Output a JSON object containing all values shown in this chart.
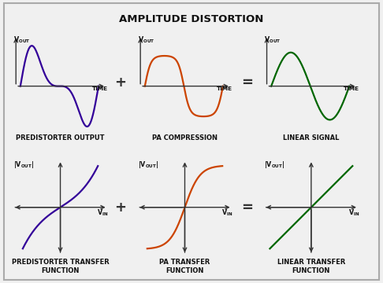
{
  "title": "AMPLITUDE DISTORTION",
  "bg_color": "#f0f0f0",
  "colors": [
    "#330099",
    "#cc4400",
    "#006600"
  ],
  "top_labels": [
    "PREDISTORTER OUTPUT",
    "PA COMPRESSION",
    "LINEAR SIGNAL"
  ],
  "bot_labels": [
    "PREDISTORTER TRANSFER\nFUNCTION",
    "PA TRANSFER\nFUNCTION",
    "LINEAR TRANSFER\nFUNCTION"
  ],
  "title_fontsize": 9.5,
  "label_fontsize": 6.0,
  "axis_label_fontsize": 5.8,
  "plus_fontsize": 13
}
